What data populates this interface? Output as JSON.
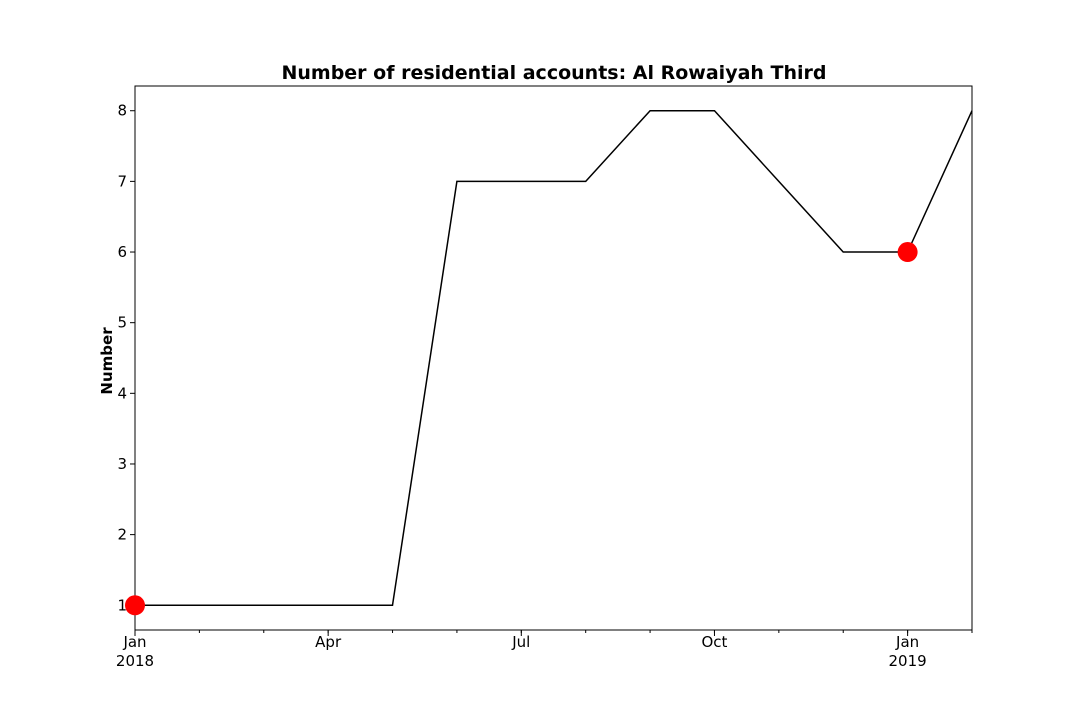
{
  "chart_data": {
    "type": "line",
    "title": "Number of residential accounts: Al Rowaiyah Third",
    "xlabel": "",
    "ylabel": "Number",
    "x": [
      "2018-01",
      "2018-02",
      "2018-03",
      "2018-04",
      "2018-05",
      "2018-06",
      "2018-07",
      "2018-08",
      "2018-09",
      "2018-10",
      "2018-11",
      "2018-12",
      "2019-01",
      "2019-02"
    ],
    "series": [
      {
        "values": [
          1,
          1,
          1,
          1,
          1,
          7,
          7,
          7,
          8,
          8,
          7,
          6,
          6,
          8
        ]
      }
    ],
    "highlight_points": [
      {
        "x": "2018-01",
        "y": 1
      },
      {
        "x": "2019-01",
        "y": 6
      }
    ],
    "xlim": [
      "2018-01",
      "2019-02"
    ],
    "ylim": [
      0.65,
      8.35
    ],
    "yticks": [
      1,
      2,
      3,
      4,
      5,
      6,
      7,
      8
    ],
    "xticks": [
      {
        "x": "2018-01",
        "label": "Jan",
        "sublabel": "2018"
      },
      {
        "x": "2018-04",
        "label": "Apr",
        "sublabel": ""
      },
      {
        "x": "2018-07",
        "label": "Jul",
        "sublabel": ""
      },
      {
        "x": "2018-10",
        "label": "Oct",
        "sublabel": ""
      },
      {
        "x": "2019-01",
        "label": "Jan",
        "sublabel": "2019"
      }
    ],
    "grid": false,
    "line_color": "#000000",
    "highlight_color": "#ff0000"
  }
}
